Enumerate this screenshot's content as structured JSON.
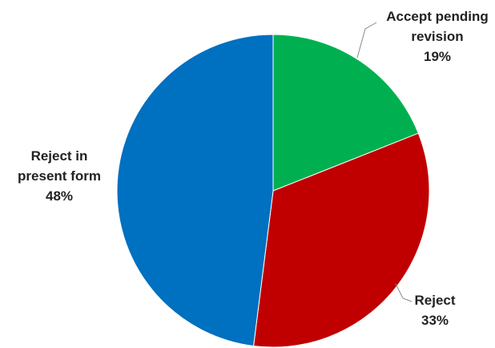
{
  "chart_data": {
    "type": "pie",
    "title": "",
    "start_angle_deg": 0,
    "direction": "clockwise",
    "legend": "none",
    "slices": [
      {
        "label": "Accept pending revision",
        "label_lines": [
          "Accept pending",
          "revision"
        ],
        "value": 19,
        "value_label": "19%",
        "color": "#00b050"
      },
      {
        "label": "Reject",
        "label_lines": [
          "Reject"
        ],
        "value": 33,
        "value_label": "33%",
        "color": "#c00000"
      },
      {
        "label": "Reject in present form",
        "label_lines": [
          "Reject in",
          "present form"
        ],
        "value": 48,
        "value_label": "48%",
        "color": "#0070c0"
      }
    ]
  }
}
